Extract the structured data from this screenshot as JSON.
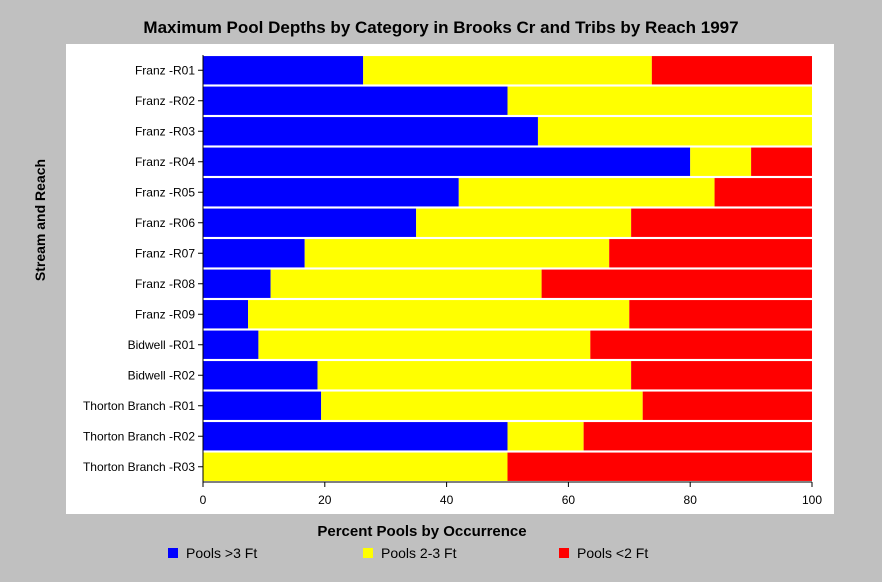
{
  "chart_data": {
    "type": "bar",
    "orientation": "horizontal",
    "stacked": true,
    "title": "Maximum Pool Depths by Category in Brooks Cr and Tribs by Reach 1997",
    "xlabel": "Percent Pools by Occurrence",
    "ylabel": "Stream and Reach",
    "xlim": [
      0,
      100
    ],
    "xticks": [
      0,
      20,
      40,
      60,
      80,
      100
    ],
    "grid": false,
    "legend_position": "bottom",
    "categories": [
      "Franz -R01",
      "Franz -R02",
      "Franz -R03",
      "Franz -R04",
      "Franz -R05",
      "Franz -R06",
      "Franz -R07",
      "Franz -R08",
      "Franz -R09",
      "Bidwell -R01",
      "Bidwell -R02",
      "Thorton Branch -R01",
      "Thorton Branch -R02",
      "Thorton Branch -R03"
    ],
    "series": [
      {
        "name": "Pools >3 Ft",
        "color": "#0000ff",
        "values": [
          26.3,
          50,
          55,
          80,
          42,
          35,
          16.7,
          11.1,
          7.4,
          9.1,
          18.8,
          19.4,
          50,
          0
        ]
      },
      {
        "name": "Pools 2-3 Ft",
        "color": "#ffff00",
        "values": [
          47.4,
          50,
          45,
          10,
          42,
          35.3,
          50,
          44.5,
          62.6,
          54.5,
          51.5,
          52.8,
          12.5,
          50
        ]
      },
      {
        "name": "Pools <2 Ft",
        "color": "#ff0000",
        "values": [
          26.3,
          0,
          0,
          10,
          16,
          29.7,
          33.3,
          44.4,
          30,
          36.4,
          29.7,
          27.8,
          37.5,
          50
        ]
      }
    ]
  }
}
